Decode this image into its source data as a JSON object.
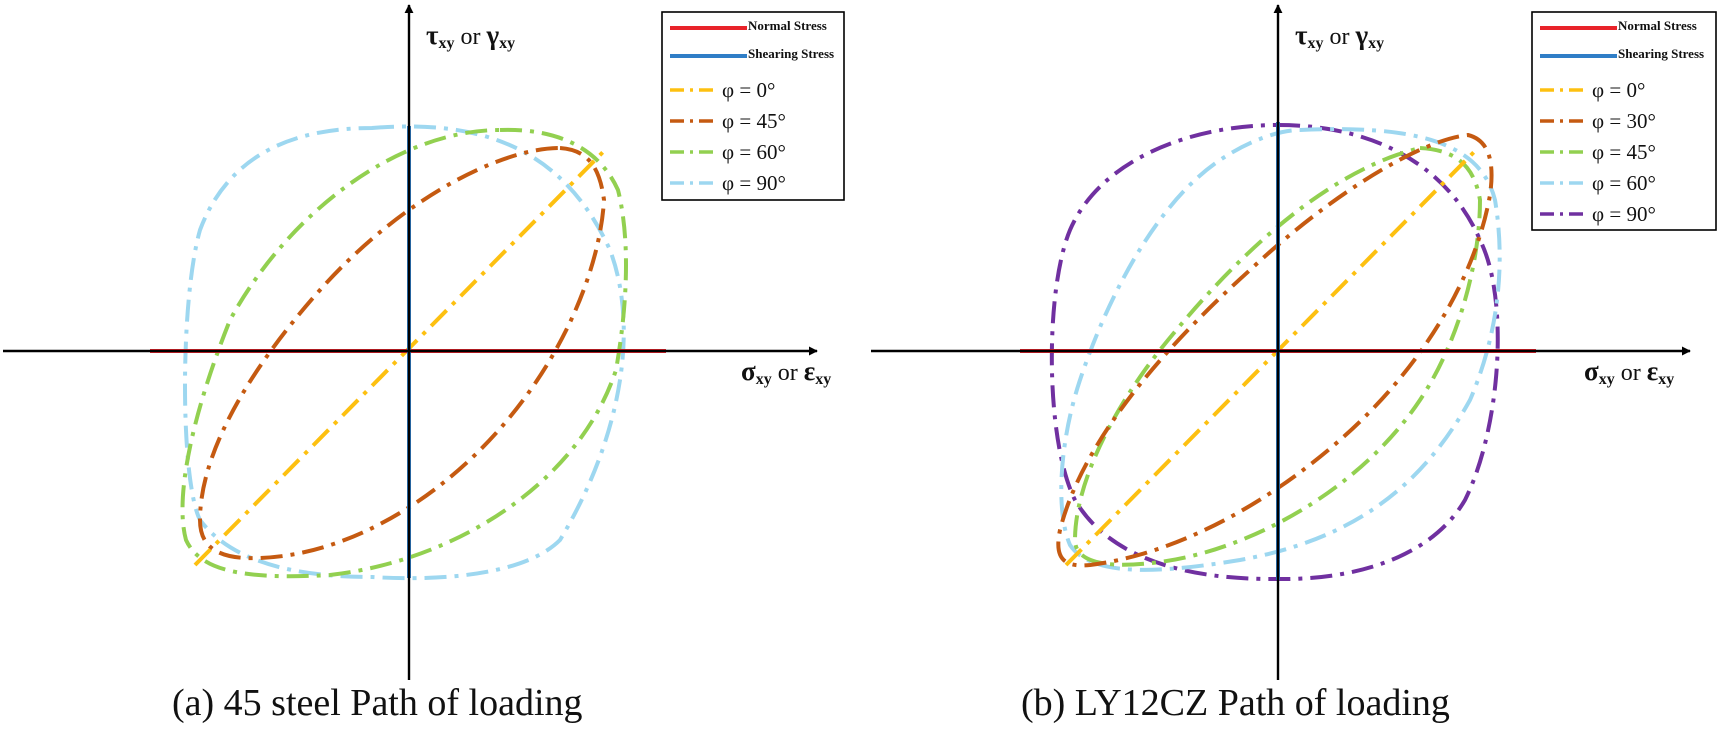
{
  "panels": [
    {
      "id": "a",
      "caption": "(a) 45 steel Path of loading",
      "y_axis_label": {
        "main1": "τ",
        "sub1": "xy",
        "mid": " or ",
        "main2": "γ",
        "sub2": "xy"
      },
      "x_axis_label": {
        "main1": "σ",
        "sub1": "xy",
        "mid": " or ",
        "main2": "ε",
        "sub2": "xy"
      },
      "legend": [
        {
          "label": "Normal Stress",
          "color": "#e8232a",
          "style": "solid",
          "size": "small"
        },
        {
          "label": "Shearing Stress",
          "color": "#2f7ec7",
          "style": "solid",
          "size": "small"
        },
        {
          "label": "φ = 0°",
          "color": "#fdc010",
          "style": "dashdot",
          "size": "big"
        },
        {
          "label": "φ = 45°",
          "color": "#c55a11",
          "style": "dashdot",
          "size": "big"
        },
        {
          "label": "φ = 60°",
          "color": "#92d050",
          "style": "dashdot",
          "size": "big"
        },
        {
          "label": "φ = 90°",
          "color": "#9dd7f0",
          "style": "dashdot",
          "size": "big"
        }
      ]
    },
    {
      "id": "b",
      "caption": "(b) LY12CZ  Path of loading",
      "y_axis_label": {
        "main1": "τ",
        "sub1": "xy",
        "mid": " or ",
        "main2": "γ",
        "sub2": "xy"
      },
      "x_axis_label": {
        "main1": "σ",
        "sub1": "xy",
        "mid": " or ",
        "main2": "ε",
        "sub2": "xy"
      },
      "legend": [
        {
          "label": "Normal Stress",
          "color": "#e8232a",
          "style": "solid",
          "size": "small"
        },
        {
          "label": "Shearing Stress",
          "color": "#2f7ec7",
          "style": "solid",
          "size": "small"
        },
        {
          "label": "φ = 0°",
          "color": "#fdc010",
          "style": "dashdot",
          "size": "big"
        },
        {
          "label": "φ = 30°",
          "color": "#c55a11",
          "style": "dashdot",
          "size": "big"
        },
        {
          "label": "φ = 45°",
          "color": "#92d050",
          "style": "dashdot",
          "size": "big"
        },
        {
          "label": "φ = 60°",
          "color": "#9dd7f0",
          "style": "dashdot",
          "size": "big"
        },
        {
          "label": "φ = 90°",
          "color": "#7030a0",
          "style": "dashdot",
          "size": "big"
        }
      ]
    }
  ]
}
